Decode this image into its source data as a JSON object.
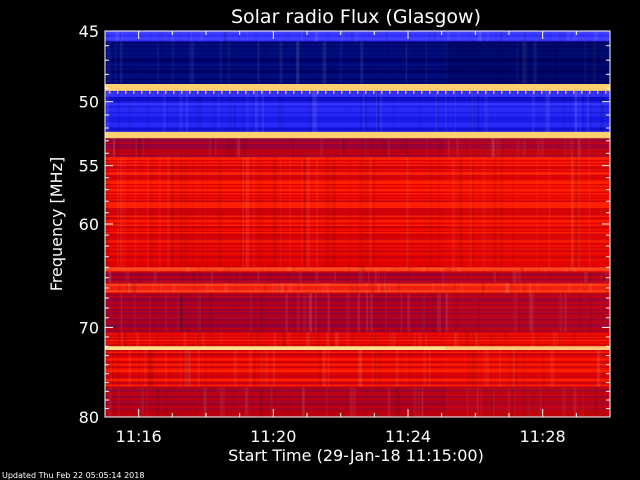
{
  "chart_data": {
    "type": "heatmap",
    "title": "Solar radio Flux (Glasgow)",
    "xlabel": "Start Time (29-Jan-18 11:15:00)",
    "ylabel": "Frequency [MHz]",
    "y_ticks": [
      45,
      50,
      55,
      60,
      70,
      80
    ],
    "x_ticks": [
      "11:16",
      "11:20",
      "11:24",
      "11:28"
    ],
    "x_tick_minutes": [
      16,
      20,
      24,
      28
    ],
    "xlim_minutes": [
      15,
      30
    ],
    "ylim": [
      45,
      80
    ],
    "y_axis_scale": "log",
    "y_axis_direction": "top-to-bottom",
    "colors": {
      "high": "#ffe28a",
      "mid": "#e00000",
      "low": "#1010e0",
      "background": "#000000"
    },
    "bands": [
      {
        "f0": 45.0,
        "f1": 45.7,
        "level": "low-bright"
      },
      {
        "f0": 45.7,
        "f1": 48.7,
        "level": "very-low"
      },
      {
        "f0": 48.7,
        "f1": 49.2,
        "level": "high"
      },
      {
        "f0": 49.2,
        "f1": 52.3,
        "level": "low"
      },
      {
        "f0": 52.3,
        "f1": 52.8,
        "level": "high"
      },
      {
        "f0": 52.8,
        "f1": 54.3,
        "level": "mid-dark"
      },
      {
        "f0": 54.3,
        "f1": 64.0,
        "level": "mid"
      },
      {
        "f0": 64.0,
        "f1": 64.4,
        "level": "mid-bright"
      },
      {
        "f0": 64.4,
        "f1": 65.5,
        "level": "mid-dark"
      },
      {
        "f0": 65.5,
        "f1": 66.5,
        "level": "mid-bright"
      },
      {
        "f0": 66.5,
        "f1": 70.5,
        "level": "mid-dark"
      },
      {
        "f0": 70.5,
        "f1": 72.0,
        "level": "mid"
      },
      {
        "f0": 72.0,
        "f1": 72.4,
        "level": "high"
      },
      {
        "f0": 72.4,
        "f1": 76.5,
        "level": "mid"
      },
      {
        "f0": 76.5,
        "f1": 80.0,
        "level": "mid-dark"
      }
    ]
  },
  "footer": "Updated Thu Feb 22 05:05:14 2018"
}
